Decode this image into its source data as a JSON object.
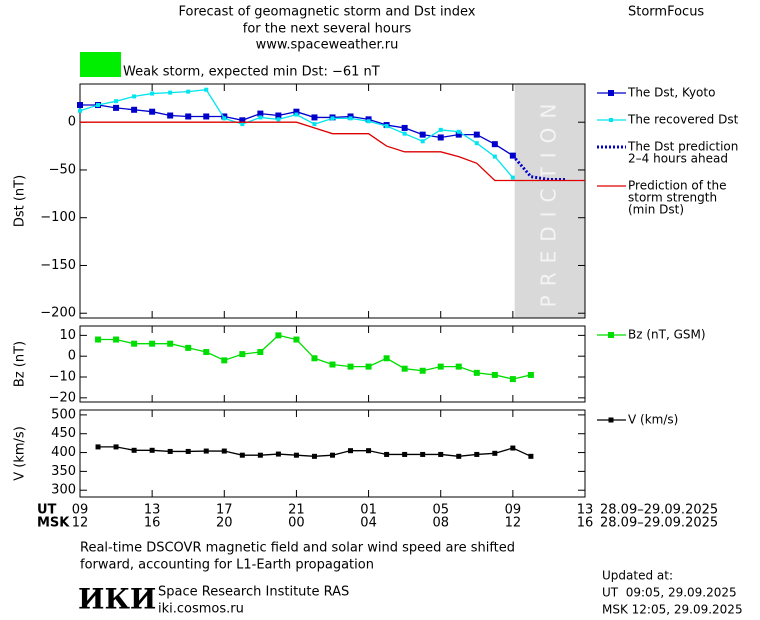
{
  "header": {
    "lines": [
      "Forecast of geomagnetic storm and Dst index",
      "for the next several hours",
      "www.spaceweather.ru"
    ],
    "brand": "StormFocus"
  },
  "storm": {
    "label": "Weak storm, expected min Dst: −61 nT",
    "color": "#00ee00"
  },
  "chart_data": [
    {
      "type": "line",
      "ylabel": "Dst (nT)",
      "ylim": [
        -205,
        40
      ],
      "yticks": [
        0,
        {
          "value": -50,
          "label": "−50"
        },
        {
          "value": -100,
          "label": "−100"
        },
        {
          "value": -150,
          "label": "−150"
        },
        {
          "value": -200,
          "label": "−200"
        }
      ],
      "shade": {
        "from": 24.1,
        "to": 28,
        "label": "PREDICTION",
        "color": "#d9d9d9"
      },
      "series": [
        {
          "name": [
            "The Dst, Kyoto"
          ],
          "color": "#0000cc",
          "marker": 6,
          "style": "solid",
          "x": [
            0,
            1,
            2,
            3,
            4,
            5,
            6,
            7,
            8,
            9,
            10,
            11,
            12,
            13,
            14,
            15,
            16,
            17,
            18,
            19,
            20,
            21,
            22,
            23,
            24
          ],
          "values": [
            18,
            18,
            15,
            13,
            11,
            7,
            6,
            6,
            6,
            2,
            9,
            7,
            11,
            5,
            5,
            6,
            3,
            -3,
            -6,
            -13,
            -16,
            -13,
            -13,
            -23,
            -35
          ]
        },
        {
          "name": [
            "The recovered Dst"
          ],
          "color": "#00e5ee",
          "marker": 4,
          "style": "solid",
          "x": [
            0,
            1,
            2,
            3,
            4,
            5,
            6,
            7,
            8,
            9,
            10,
            11,
            12,
            13,
            14,
            15,
            16,
            17,
            18,
            19,
            20,
            21,
            22,
            23,
            24
          ],
          "values": [
            12,
            18,
            22,
            27,
            30,
            31,
            32,
            34,
            4,
            -2,
            5,
            3,
            8,
            -2,
            4,
            4,
            1,
            -4,
            -12,
            -20,
            -8,
            -10,
            -22,
            -36,
            -58
          ]
        },
        {
          "name": [
            "The Dst prediction",
            "2–4 hours ahead"
          ],
          "color": "#0000cc",
          "marker": 0,
          "style": "dotted",
          "x": [
            24,
            25,
            26,
            27
          ],
          "values": [
            -35,
            -57,
            -60,
            -60
          ]
        },
        {
          "name": [
            "Prediction of the",
            "storm strength",
            "(min Dst)"
          ],
          "color": "#dd0000",
          "marker": 0,
          "style": "solid",
          "x": [
            0,
            12,
            14,
            16,
            17,
            18,
            20,
            21,
            22,
            23,
            28
          ],
          "values": [
            0,
            0,
            -12,
            -12,
            -25,
            -31,
            -31,
            -36,
            -43,
            -61,
            -61
          ]
        }
      ]
    },
    {
      "type": "line",
      "ylabel": "Bz (nT)",
      "ylim": [
        -22,
        14.5
      ],
      "yticks": [
        10,
        0,
        {
          "value": -10,
          "label": "−10"
        },
        {
          "value": -20,
          "label": "−20"
        }
      ],
      "series": [
        {
          "name": [
            "Bz (nT, GSM)"
          ],
          "color": "#00dd00",
          "marker": 6,
          "style": "solid",
          "x": [
            1,
            2,
            3,
            4,
            5,
            6,
            7,
            8,
            9,
            10,
            11,
            12,
            13,
            14,
            15,
            16,
            17,
            18,
            19,
            20,
            21,
            22,
            23,
            24,
            25
          ],
          "values": [
            8,
            8,
            6,
            6,
            6,
            4,
            2,
            -2,
            1,
            2,
            10,
            8,
            -1,
            -4,
            -5,
            -5,
            -1,
            -6,
            -7,
            -5,
            -5,
            -8,
            -9,
            -11,
            -9
          ]
        }
      ]
    },
    {
      "type": "line",
      "ylabel": "V (km/s)",
      "ylim": [
        282,
        513
      ],
      "yticks": [
        500,
        450,
        400,
        350,
        300
      ],
      "xlim": [
        0,
        28
      ],
      "xticks": [
        {
          "value": 0,
          "label": "09"
        },
        {
          "value": 4,
          "label": "13"
        },
        {
          "value": 8,
          "label": "17"
        },
        {
          "value": 12,
          "label": "21"
        },
        {
          "value": 16,
          "label": "01"
        },
        {
          "value": 20,
          "label": "05"
        },
        {
          "value": 24,
          "label": "09"
        },
        {
          "value": 28,
          "label": "13"
        }
      ],
      "msk_labels": [
        "12",
        "16",
        "20",
        "00",
        "04",
        "08",
        "12",
        "16"
      ],
      "ut_label": "UT",
      "msk_label": "MSK",
      "date_range": "28.09–29.09.2025",
      "series": [
        {
          "name": [
            "V (km/s)"
          ],
          "color": "#000000",
          "marker": 5,
          "style": "solid",
          "x": [
            1,
            2,
            3,
            4,
            5,
            6,
            7,
            8,
            9,
            10,
            11,
            12,
            13,
            14,
            15,
            16,
            17,
            18,
            19,
            20,
            21,
            22,
            23,
            24,
            25
          ],
          "values": [
            415,
            415,
            406,
            406,
            403,
            403,
            404,
            404,
            393,
            393,
            396,
            393,
            390,
            393,
            405,
            405,
            395,
            395,
            395,
            395,
            390,
            395,
            398,
            412,
            390
          ]
        }
      ]
    }
  ],
  "footer": {
    "note": [
      "Real-time DSCOVR magnetic field and solar wind speed are shifted",
      "forward, accounting for L1-Earth propagation"
    ],
    "logo": "ИКИ",
    "institute": "Space Research Institute RAS",
    "site": "iki.cosmos.ru",
    "updated": [
      "Updated at:",
      "UT  09:05, 29.09.2025",
      "MSK 12:05, 29.09.2025"
    ]
  }
}
